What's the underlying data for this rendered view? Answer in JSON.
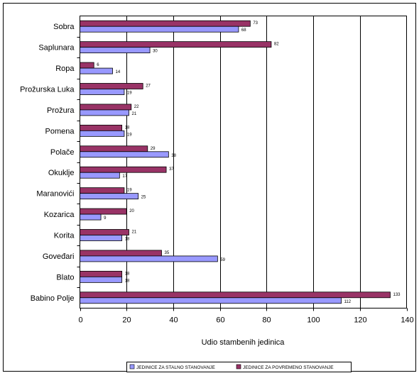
{
  "chart_data": {
    "type": "bar",
    "orientation": "horizontal",
    "title": "",
    "xlabel": "Udio stambenih jedinica",
    "ylabel": "",
    "xlim": [
      0,
      140
    ],
    "xticks": [
      0,
      20,
      40,
      60,
      80,
      100,
      120,
      140
    ],
    "grid": true,
    "legend_position": "bottom",
    "categories": [
      "Sobra",
      "Saplunara",
      "Ropa",
      "Prožurska Luka",
      "Prožura",
      "Pomena",
      "Polače",
      "Okuklje",
      "Maranovići",
      "Kozarica",
      "Korita",
      "Goveđari",
      "Blato",
      "Babino Polje"
    ],
    "series": [
      {
        "name": "JEDINICE ZA STALNO STANOVANJE",
        "color": "#9999ff",
        "values": [
          68,
          30,
          14,
          19,
          21,
          19,
          38,
          17,
          25,
          9,
          18,
          59,
          18,
          112
        ]
      },
      {
        "name": "JEDINICE ZA POVREMENO STANOVANJE",
        "color": "#993366",
        "values": [
          73,
          82,
          6,
          27,
          22,
          18,
          29,
          37,
          19,
          20,
          21,
          35,
          18,
          133
        ]
      }
    ]
  }
}
